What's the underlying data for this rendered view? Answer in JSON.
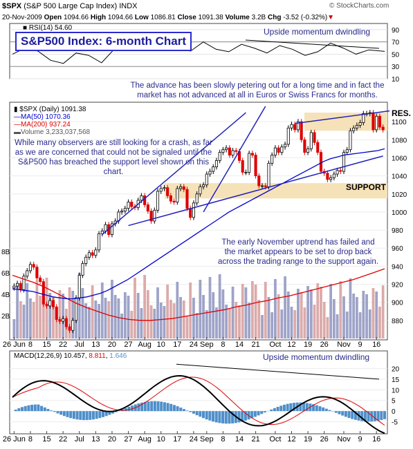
{
  "header": {
    "symbol": "$SPX",
    "name": "(S&P 500 Large Cap Index)",
    "exchange": "INDX",
    "date": "20-Nov-2009",
    "open_label": "Open",
    "open": "1094.66",
    "high_label": "High",
    "high": "1094.66",
    "low_label": "Low",
    "low": "1086.81",
    "close_label": "Close",
    "close": "1091.38",
    "volume_label": "Volume",
    "volume": "3.2B",
    "chg_label": "Chg",
    "chg": "-3.52 (-0.32%)",
    "copyright": "© StockCharts.com"
  },
  "chart_data": [
    {
      "type": "line",
      "panel": "rsi",
      "title": "RSI(14) 54.60",
      "legend": [
        "RSI(14) 54.60"
      ],
      "ylim": [
        10,
        100
      ],
      "yticks": [
        90,
        70,
        50,
        30,
        10
      ],
      "series": [
        {
          "name": "RSI(14)",
          "x": [
            0,
            4,
            8,
            12,
            16,
            20,
            24,
            28,
            32,
            36,
            40,
            44,
            48,
            52,
            56,
            60,
            64,
            68,
            72,
            76,
            80,
            84,
            88,
            92,
            96,
            100,
            104,
            108,
            112,
            117
          ],
          "values": [
            50,
            60,
            55,
            40,
            35,
            52,
            48,
            36,
            58,
            72,
            74,
            68,
            75,
            62,
            55,
            70,
            58,
            54,
            66,
            60,
            52,
            64,
            58,
            48,
            54,
            68,
            60,
            50,
            57,
            54.6
          ]
        }
      ],
      "annotations": [
        "Upside momentum dwindling",
        "S&P500 Index: 6-month Chart"
      ]
    },
    {
      "type": "candlestick",
      "panel": "price",
      "legend": [
        "$SPX (Daily) 1091.38",
        "MA(50) 1070.36",
        "MA(200) 937.24",
        "Volume 3,233,037,568"
      ],
      "ylim": [
        860,
        1120
      ],
      "yticks": [
        880,
        900,
        920,
        940,
        960,
        980,
        1000,
        1020,
        1040,
        1060,
        1080,
        1100
      ],
      "volume_ticks": [
        "8B",
        "6B",
        "4B",
        "2B"
      ],
      "x_ticks": [
        "26 Jun",
        "8",
        "15",
        "22",
        "Jul",
        "13",
        "20",
        "27",
        "Aug",
        "10",
        "17",
        "24",
        "Sep",
        "8",
        "14",
        "21",
        "Oct",
        "12",
        "19",
        "26",
        "Nov",
        "9",
        "16"
      ],
      "close": [
        918,
        921,
        914,
        929,
        935,
        942,
        939,
        927,
        923,
        898,
        896,
        902,
        895,
        881,
        879,
        882,
        873,
        869,
        880,
        905,
        930,
        943,
        950,
        955,
        952,
        958,
        976,
        979,
        986,
        975,
        987,
        990,
        1000,
        1001,
        1004,
        1011,
        1006,
        1005,
        1013,
        1018,
        1008,
        1001,
        990,
        1002,
        1023,
        1026,
        1027,
        1018,
        1012,
        1011,
        1026,
        1028,
        1025,
        1004,
        994,
        1010,
        1020,
        1028,
        1030,
        1042,
        1045,
        1050,
        1057,
        1066,
        1069,
        1071,
        1063,
        1068,
        1067,
        1057,
        1044,
        1044,
        1065,
        1063,
        1040,
        1029,
        1029,
        1028,
        1054,
        1063,
        1071,
        1066,
        1072,
        1075,
        1093,
        1097,
        1091,
        1100,
        1080,
        1066,
        1070,
        1088,
        1077,
        1066,
        1045,
        1043,
        1036,
        1038,
        1042,
        1046,
        1045,
        1066,
        1069,
        1090,
        1093,
        1096,
        1099,
        1109,
        1109,
        1110,
        1091,
        1106,
        1094,
        1091
      ],
      "ma50": [
        915,
        914,
        913,
        912,
        910,
        908,
        906,
        905,
        904,
        904,
        905,
        906,
        908,
        910,
        913,
        917,
        921,
        925,
        930,
        935,
        940,
        945,
        950,
        955,
        960,
        965,
        970,
        975,
        980,
        985,
        990,
        995,
        1000,
        1004,
        1008,
        1012,
        1016,
        1020,
        1024,
        1028,
        1032,
        1036,
        1040,
        1044,
        1048,
        1052,
        1056,
        1059,
        1061,
        1063,
        1064,
        1065,
        1066,
        1067,
        1068,
        1070
      ],
      "ma200": [
        930,
        926,
        922,
        917,
        911,
        905,
        899,
        894,
        890,
        886,
        883,
        881,
        880,
        880,
        881,
        882,
        884,
        886,
        888,
        890,
        892,
        895,
        897,
        900,
        902,
        905,
        907,
        910,
        913,
        916,
        919,
        922,
        925,
        929,
        933,
        937.24
      ],
      "support": [
        1015,
        1032
      ],
      "resistance": [
        1090,
        1110
      ],
      "annotations": [
        "The advance has been slowly petering out for a long time and in fact the market has not advanced at all in Euros or Swiss Francs for months.",
        "While many observers are still looking for a crash, as far as we are concerned that could not be signaled until the S&P500 has breached the support level shown on this chart.",
        "The early November uptrend has failed and the market appears to be set to drop back across the trading range to the support again.",
        "RES.",
        "SUPPORT"
      ]
    },
    {
      "type": "line",
      "panel": "macd",
      "legend": [
        "MACD(12,26,9)",
        "10.457",
        "8.811",
        "1.646"
      ],
      "ylim": [
        -10,
        25
      ],
      "yticks": [
        20,
        15,
        10,
        5,
        0,
        -5
      ],
      "x_ticks": [
        "26 Jun",
        "8",
        "15",
        "22",
        "Jul",
        "13",
        "20",
        "27",
        "Aug",
        "10",
        "17",
        "24",
        "Sep",
        "8",
        "14",
        "21",
        "Oct",
        "12",
        "19",
        "26",
        "Nov",
        "9",
        "16"
      ],
      "annotations": [
        "Upside momentum dwindling"
      ]
    }
  ],
  "colors": {
    "up": "#000000",
    "down": "#dd0000",
    "ma50": "#0000cc",
    "ma200": "#dd0000",
    "volume_up": "#9ea3c8",
    "volume_down": "#dcaaaa",
    "band": "#f6e2b8",
    "annotation": "#2a2a8c",
    "macd_hist": "#4f8fca"
  }
}
